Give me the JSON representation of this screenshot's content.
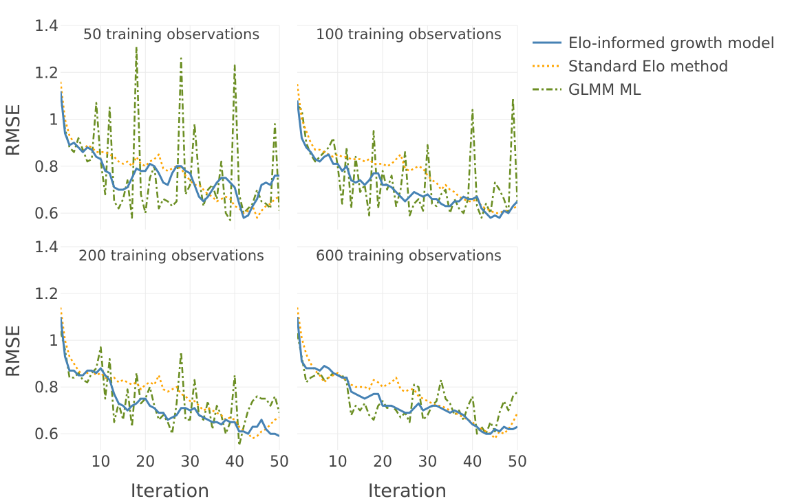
{
  "chart_data": {
    "type": "line",
    "ylabel": "RMSE",
    "xlabel": "Iteration",
    "xlim": [
      1,
      50
    ],
    "ylim": [
      0.53,
      1.4
    ],
    "xticks": [
      10,
      20,
      30,
      40,
      50
    ],
    "yticks": [
      0.6,
      0.8,
      1,
      1.2,
      1.4
    ],
    "grid": true,
    "legend_position": "top-right",
    "legend": [
      {
        "name": "Elo-informed growth model",
        "color": "#4682B4",
        "dash": "solid"
      },
      {
        "name": "Standard Elo method",
        "color": "#FFA500",
        "dash": "dot"
      },
      {
        "name": "GLMM ML",
        "color": "#6B8E23",
        "dash": "dashdot"
      }
    ],
    "x": [
      1,
      2,
      3,
      4,
      5,
      6,
      7,
      8,
      9,
      10,
      11,
      12,
      13,
      14,
      15,
      16,
      17,
      18,
      19,
      20,
      21,
      22,
      23,
      24,
      25,
      26,
      27,
      28,
      29,
      30,
      31,
      32,
      33,
      34,
      35,
      36,
      37,
      38,
      39,
      40,
      41,
      42,
      43,
      44,
      45,
      46,
      47,
      48,
      49,
      50
    ],
    "panels": [
      {
        "title": "50 training observations",
        "series": [
          {
            "name": "Elo-informed growth model",
            "values": [
              1.12,
              0.94,
              0.89,
              0.9,
              0.88,
              0.86,
              0.88,
              0.87,
              0.84,
              0.83,
              0.78,
              0.77,
              0.71,
              0.7,
              0.7,
              0.71,
              0.75,
              0.79,
              0.78,
              0.78,
              0.81,
              0.8,
              0.77,
              0.73,
              0.72,
              0.77,
              0.8,
              0.8,
              0.78,
              0.77,
              0.72,
              0.67,
              0.65,
              0.67,
              0.7,
              0.73,
              0.75,
              0.75,
              0.73,
              0.71,
              0.64,
              0.58,
              0.59,
              0.63,
              0.66,
              0.72,
              0.73,
              0.72,
              0.76,
              0.76
            ]
          },
          {
            "name": "Standard Elo method",
            "values": [
              1.16,
              1.0,
              0.93,
              0.9,
              0.88,
              0.86,
              0.89,
              0.88,
              0.86,
              0.86,
              0.86,
              0.85,
              0.84,
              0.82,
              0.81,
              0.82,
              0.8,
              0.84,
              0.81,
              0.8,
              0.82,
              0.83,
              0.85,
              0.79,
              0.78,
              0.79,
              0.8,
              0.79,
              0.76,
              0.74,
              0.72,
              0.72,
              0.7,
              0.68,
              0.67,
              0.65,
              0.66,
              0.67,
              0.66,
              0.63,
              0.62,
              0.6,
              0.61,
              0.63,
              0.58,
              0.61,
              0.63,
              0.64,
              0.66,
              0.67
            ]
          },
          {
            "name": "GLMM ML",
            "values": [
              1.1,
              0.96,
              0.88,
              0.86,
              0.92,
              0.87,
              0.82,
              0.83,
              1.07,
              0.82,
              0.68,
              1.05,
              0.65,
              0.62,
              0.66,
              0.74,
              0.58,
              1.31,
              0.68,
              0.6,
              0.75,
              0.8,
              0.62,
              0.66,
              0.65,
              0.63,
              0.65,
              1.26,
              0.68,
              0.72,
              0.98,
              0.75,
              0.63,
              0.7,
              0.72,
              0.66,
              0.82,
              0.6,
              0.57,
              1.23,
              0.68,
              0.6,
              0.62,
              0.64,
              0.7,
              0.65,
              0.64,
              0.62,
              0.98,
              0.61
            ]
          }
        ]
      },
      {
        "title": "100 training observations",
        "series": [
          {
            "name": "Elo-informed growth model",
            "values": [
              1.08,
              0.92,
              0.88,
              0.86,
              0.83,
              0.82,
              0.84,
              0.85,
              0.81,
              0.81,
              0.78,
              0.8,
              0.74,
              0.73,
              0.74,
              0.72,
              0.74,
              0.77,
              0.77,
              0.72,
              0.72,
              0.71,
              0.69,
              0.67,
              0.65,
              0.67,
              0.69,
              0.68,
              0.67,
              0.68,
              0.66,
              0.66,
              0.64,
              0.63,
              0.63,
              0.65,
              0.65,
              0.67,
              0.66,
              0.66,
              0.67,
              0.62,
              0.6,
              0.58,
              0.59,
              0.58,
              0.61,
              0.6,
              0.63,
              0.65
            ]
          },
          {
            "name": "Standard Elo method",
            "values": [
              1.15,
              1.0,
              0.95,
              0.9,
              0.87,
              0.87,
              0.86,
              0.85,
              0.84,
              0.85,
              0.84,
              0.84,
              0.83,
              0.83,
              0.83,
              0.82,
              0.83,
              0.81,
              0.81,
              0.81,
              0.8,
              0.81,
              0.83,
              0.85,
              0.79,
              0.78,
              0.79,
              0.8,
              0.79,
              0.76,
              0.74,
              0.73,
              0.7,
              0.72,
              0.7,
              0.69,
              0.67,
              0.66,
              0.65,
              0.65,
              0.66,
              0.63,
              0.62,
              0.61,
              0.6,
              0.6,
              0.61,
              0.61,
              0.62,
              0.63
            ]
          },
          {
            "name": "GLMM ML",
            "values": [
              1.06,
              1.04,
              0.9,
              0.85,
              0.82,
              0.84,
              0.86,
              0.88,
              0.92,
              0.8,
              0.64,
              0.88,
              0.62,
              0.84,
              0.69,
              0.72,
              0.59,
              0.95,
              0.62,
              0.78,
              0.7,
              0.76,
              0.63,
              0.7,
              0.86,
              0.59,
              0.64,
              0.66,
              0.61,
              0.89,
              0.64,
              0.63,
              0.68,
              0.7,
              0.6,
              0.66,
              0.62,
              0.6,
              0.66,
              1.04,
              0.63,
              0.58,
              0.64,
              0.6,
              0.73,
              0.7,
              0.66,
              0.6,
              1.09,
              0.64
            ]
          }
        ]
      },
      {
        "title": "200 training observations",
        "series": [
          {
            "name": "Elo-informed growth model",
            "values": [
              1.1,
              0.93,
              0.87,
              0.87,
              0.85,
              0.85,
              0.87,
              0.87,
              0.86,
              0.88,
              0.85,
              0.83,
              0.77,
              0.73,
              0.72,
              0.7,
              0.72,
              0.73,
              0.75,
              0.75,
              0.72,
              0.71,
              0.69,
              0.69,
              0.66,
              0.67,
              0.68,
              0.71,
              0.71,
              0.7,
              0.71,
              0.68,
              0.67,
              0.66,
              0.65,
              0.65,
              0.64,
              0.66,
              0.65,
              0.65,
              0.61,
              0.61,
              0.6,
              0.63,
              0.63,
              0.66,
              0.62,
              0.6,
              0.6,
              0.59
            ]
          },
          {
            "name": "Standard Elo method",
            "values": [
              1.14,
              1.0,
              0.93,
              0.9,
              0.87,
              0.85,
              0.86,
              0.87,
              0.85,
              0.86,
              0.84,
              0.83,
              0.84,
              0.82,
              0.83,
              0.82,
              0.81,
              0.82,
              0.79,
              0.81,
              0.82,
              0.81,
              0.85,
              0.79,
              0.78,
              0.79,
              0.8,
              0.77,
              0.76,
              0.74,
              0.74,
              0.72,
              0.7,
              0.71,
              0.7,
              0.69,
              0.68,
              0.66,
              0.67,
              0.66,
              0.63,
              0.61,
              0.6,
              0.58,
              0.59,
              0.61,
              0.62,
              0.64,
              0.66,
              0.67
            ]
          },
          {
            "name": "GLMM ML",
            "values": [
              1.04,
              0.96,
              0.84,
              0.84,
              0.86,
              0.83,
              0.82,
              0.86,
              0.88,
              0.97,
              0.75,
              0.92,
              0.65,
              0.73,
              0.66,
              0.79,
              0.63,
              0.86,
              0.73,
              0.75,
              0.8,
              0.72,
              0.66,
              0.68,
              0.65,
              0.6,
              0.73,
              0.95,
              0.66,
              0.66,
              0.83,
              0.68,
              0.66,
              0.74,
              0.62,
              0.72,
              0.68,
              0.6,
              0.65,
              0.85,
              0.55,
              0.63,
              0.7,
              0.74,
              0.76,
              0.75,
              0.75,
              0.72,
              0.76,
              0.69
            ]
          }
        ]
      },
      {
        "title": "600 training observations",
        "series": [
          {
            "name": "Elo-informed growth model",
            "values": [
              1.1,
              0.91,
              0.88,
              0.88,
              0.88,
              0.87,
              0.89,
              0.88,
              0.86,
              0.85,
              0.84,
              0.84,
              0.78,
              0.77,
              0.76,
              0.75,
              0.76,
              0.77,
              0.77,
              0.72,
              0.72,
              0.72,
              0.71,
              0.7,
              0.69,
              0.69,
              0.71,
              0.73,
              0.7,
              0.71,
              0.72,
              0.72,
              0.71,
              0.7,
              0.69,
              0.7,
              0.69,
              0.68,
              0.66,
              0.64,
              0.63,
              0.61,
              0.6,
              0.6,
              0.62,
              0.61,
              0.63,
              0.62,
              0.62,
              0.63
            ]
          },
          {
            "name": "Standard Elo method",
            "values": [
              1.14,
              1.01,
              0.94,
              0.9,
              0.87,
              0.85,
              0.82,
              0.84,
              0.85,
              0.86,
              0.84,
              0.83,
              0.81,
              0.8,
              0.8,
              0.8,
              0.79,
              0.83,
              0.82,
              0.8,
              0.81,
              0.82,
              0.84,
              0.79,
              0.78,
              0.79,
              0.79,
              0.76,
              0.75,
              0.74,
              0.73,
              0.72,
              0.72,
              0.71,
              0.7,
              0.69,
              0.68,
              0.67,
              0.66,
              0.65,
              0.63,
              0.62,
              0.61,
              0.6,
              0.58,
              0.61,
              0.6,
              0.62,
              0.65,
              0.69
            ]
          },
          {
            "name": "GLMM ML",
            "values": [
              1.03,
              0.93,
              0.82,
              0.84,
              0.85,
              0.86,
              0.83,
              0.84,
              0.86,
              0.85,
              0.85,
              0.82,
              0.68,
              0.72,
              0.7,
              0.73,
              0.68,
              0.66,
              0.72,
              0.74,
              0.71,
              0.72,
              0.7,
              0.67,
              0.69,
              0.65,
              0.81,
              0.8,
              0.66,
              0.68,
              0.72,
              0.74,
              0.83,
              0.75,
              0.73,
              0.68,
              0.7,
              0.66,
              0.72,
              0.76,
              0.6,
              0.63,
              0.6,
              0.65,
              0.61,
              0.69,
              0.74,
              0.7,
              0.76,
              0.78
            ]
          }
        ]
      }
    ]
  }
}
